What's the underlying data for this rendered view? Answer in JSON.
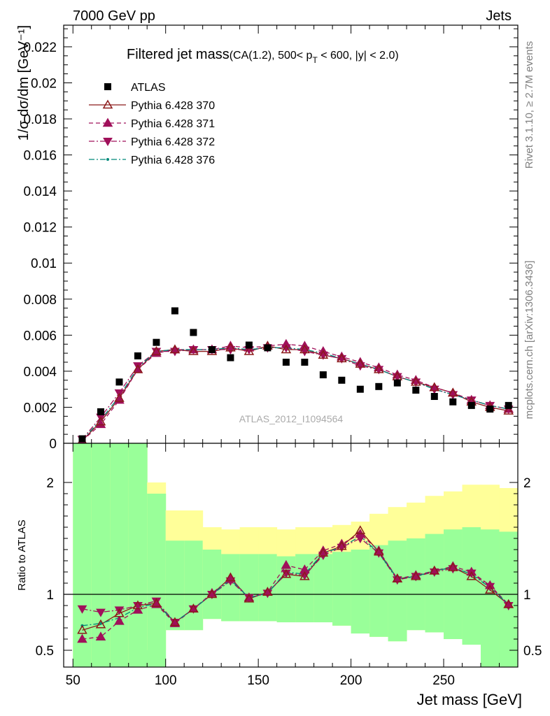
{
  "header": {
    "left": "7000 GeV pp",
    "right": "Jets"
  },
  "side_labels": {
    "rivet": "Rivet 3.1.10, ≥ 2.7M events",
    "mcplots": "mcplots.cern.ch [arXiv:1306.3436]"
  },
  "watermark": "ATLAS_2012_I1094564",
  "chart_data": [
    {
      "type": "scatter",
      "title_main": "Filtered jet mass",
      "title_cuts_pre": "(CA(1.2), 500< p",
      "title_cuts_sub": "T",
      "title_cuts_post": " < 600, |y| < 2.0)",
      "xlabel": "Jet mass [GeV]",
      "ylabel": "1/σ dσ/dm [GeV⁻¹]",
      "xlim": [
        45,
        290
      ],
      "ylim": [
        0,
        0.0232
      ],
      "y_ticks": [
        0,
        0.002,
        0.004,
        0.006,
        0.008,
        0.01,
        0.012,
        0.014,
        0.016,
        0.018,
        0.02,
        0.022
      ],
      "y_tick_labels": [
        "0",
        "0.002",
        "0.004",
        "0.006",
        "0.008",
        "0.01",
        "0.012",
        "0.014",
        "0.016",
        "0.018",
        "0.02",
        "0.022"
      ],
      "x": [
        55,
        65,
        75,
        85,
        95,
        105,
        115,
        125,
        135,
        145,
        155,
        165,
        175,
        185,
        195,
        205,
        215,
        225,
        235,
        245,
        255,
        265,
        275,
        285
      ],
      "data": {
        "name": "ATLAS",
        "color": "#000000",
        "values": [
          0.00025,
          0.00175,
          0.0034,
          0.00485,
          0.0056,
          0.00735,
          0.00615,
          0.0052,
          0.00475,
          0.00545,
          0.0053,
          0.0045,
          0.0045,
          0.0038,
          0.0035,
          0.003,
          0.00315,
          0.00335,
          0.00295,
          0.0026,
          0.0023,
          0.0021,
          0.0019,
          0.0021
        ]
      },
      "series": [
        {
          "name": "Pythia 6.428 370",
          "color": "#8b1a1a",
          "line": "solid",
          "marker": "triangle-up-open",
          "values": [
            0.00015,
            0.0012,
            0.0025,
            0.0041,
            0.0051,
            0.0052,
            0.0051,
            0.0051,
            0.0053,
            0.0051,
            0.0054,
            0.0052,
            0.0052,
            0.0049,
            0.0047,
            0.0044,
            0.0041,
            0.0037,
            0.0034,
            0.0031,
            0.0028,
            0.0023,
            0.002,
            0.0018
          ]
        },
        {
          "name": "Pythia 6.428 371",
          "color": "#a0105a",
          "line": "dashed",
          "marker": "triangle-up",
          "values": [
            0.00014,
            0.00105,
            0.0024,
            0.0041,
            0.005,
            0.0052,
            0.0052,
            0.0052,
            0.0054,
            0.0053,
            0.0054,
            0.0055,
            0.0054,
            0.0051,
            0.0048,
            0.0045,
            0.0042,
            0.0038,
            0.0035,
            0.0031,
            0.0028,
            0.0024,
            0.0021,
            0.0019
          ]
        },
        {
          "name": "Pythia 6.428 372",
          "color": "#a0105a",
          "line": "dashdot",
          "marker": "triangle-down",
          "values": [
            0.00022,
            0.00145,
            0.0028,
            0.0043,
            0.0051,
            0.0051,
            0.0052,
            0.0052,
            0.0052,
            0.0052,
            0.0053,
            0.0053,
            0.0051,
            0.0049,
            0.0047,
            0.0043,
            0.0041,
            0.0037,
            0.0034,
            0.003,
            0.0027,
            0.0024,
            0.0021,
            0.0019
          ]
        },
        {
          "name": "Pythia 6.428 376",
          "color": "#00897b",
          "line": "dashdot",
          "marker": "dot",
          "values": [
            0.00018,
            0.0013,
            0.0026,
            0.0042,
            0.0051,
            0.0052,
            0.0052,
            0.0052,
            0.0053,
            0.0052,
            0.0053,
            0.0053,
            0.0052,
            0.005,
            0.0047,
            0.0044,
            0.0041,
            0.0037,
            0.0034,
            0.003,
            0.0027,
            0.0024,
            0.0021,
            0.0019
          ]
        }
      ]
    },
    {
      "type": "scatter",
      "xlabel": "Jet mass [GeV]",
      "ylabel": "Ratio to ATLAS",
      "xlim": [
        45,
        290
      ],
      "ylim": [
        0.35,
        2.35
      ],
      "x_ticks": [
        50,
        100,
        150,
        200,
        250
      ],
      "x_tick_labels": [
        "50",
        "100",
        "150",
        "200",
        "250"
      ],
      "y_ticks": [
        0.5,
        1,
        2
      ],
      "y_tick_labels": [
        "0.5",
        "1",
        "2"
      ],
      "reference": 1,
      "bin_edges": [
        50,
        60,
        70,
        80,
        90,
        100,
        110,
        120,
        130,
        140,
        150,
        160,
        170,
        180,
        190,
        200,
        210,
        220,
        230,
        240,
        250,
        260,
        270,
        280,
        290
      ],
      "band_yellow": {
        "color": "#ffff99",
        "lo": [
          0.35,
          0.35,
          0.35,
          0.35,
          0.5,
          0.68,
          0.68,
          0.78,
          0.76,
          0.76,
          0.76,
          0.75,
          0.75,
          0.75,
          0.72,
          0.65,
          0.62,
          0.58,
          0.68,
          0.66,
          0.6,
          0.55,
          0.48,
          0.5
        ],
        "hi": [
          2.35,
          2.35,
          2.35,
          2.35,
          2.0,
          1.75,
          1.75,
          1.6,
          1.58,
          1.6,
          1.6,
          1.58,
          1.6,
          1.6,
          1.62,
          1.65,
          1.72,
          1.78,
          1.82,
          1.88,
          1.92,
          1.98,
          1.98,
          1.95
        ]
      },
      "band_green": {
        "color": "#99ff99",
        "lo": [
          0.35,
          0.35,
          0.35,
          0.35,
          0.35,
          0.35,
          0.35,
          0.35,
          0.35,
          0.35,
          0.35,
          0.35,
          0.35,
          0.35,
          0.35,
          0.35,
          0.35,
          0.35,
          0.35,
          0.35,
          0.35,
          0.35,
          0.35,
          0.35
        ],
        "hi": [
          2.35,
          2.35,
          2.35,
          2.35,
          1.9,
          1.48,
          1.48,
          1.4,
          1.36,
          1.36,
          1.36,
          1.34,
          1.36,
          1.36,
          1.38,
          1.4,
          1.44,
          1.48,
          1.5,
          1.54,
          1.58,
          1.6,
          1.58,
          1.56
        ]
      },
      "missing_yellow_lo": [
        [
          110,
          120
        ]
      ],
      "series": [
        {
          "name": "Pythia 6.428 370",
          "color": "#8b1a1a",
          "line": "solid",
          "marker": "triangle-up-open",
          "values": [
            0.68,
            0.73,
            0.83,
            0.9,
            0.92,
            0.75,
            0.87,
            1.0,
            1.15,
            0.96,
            1.02,
            1.18,
            1.16,
            1.37,
            1.43,
            1.57,
            1.38,
            1.14,
            1.16,
            1.21,
            1.24,
            1.16,
            1.04,
            0.91
          ]
        },
        {
          "name": "Pythia 6.428 371",
          "color": "#a0105a",
          "line": "dashed",
          "marker": "triangle-up",
          "values": [
            0.6,
            0.62,
            0.76,
            0.86,
            0.91,
            0.74,
            0.87,
            1.01,
            1.14,
            0.97,
            1.02,
            1.26,
            1.22,
            1.39,
            1.45,
            1.54,
            1.39,
            1.14,
            1.17,
            1.21,
            1.25,
            1.2,
            1.08,
            0.91
          ]
        },
        {
          "name": "Pythia 6.428 372",
          "color": "#a0105a",
          "line": "dashdot",
          "marker": "triangle-down",
          "values": [
            0.87,
            0.84,
            0.86,
            0.9,
            0.94,
            0.75,
            0.87,
            1.0,
            1.12,
            0.97,
            1.01,
            1.19,
            1.17,
            1.35,
            1.42,
            1.5,
            1.37,
            1.13,
            1.16,
            1.2,
            1.23,
            1.19,
            1.07,
            0.9
          ]
        },
        {
          "name": "Pythia 6.428 376",
          "color": "#00897b",
          "line": "dashdot",
          "marker": "dot",
          "values": [
            0.72,
            0.74,
            0.79,
            0.88,
            0.92,
            0.75,
            0.87,
            1.0,
            1.13,
            0.97,
            1.01,
            1.2,
            1.18,
            1.37,
            1.42,
            1.52,
            1.37,
            1.14,
            1.16,
            1.21,
            1.24,
            1.18,
            1.06,
            0.91
          ]
        }
      ]
    }
  ]
}
